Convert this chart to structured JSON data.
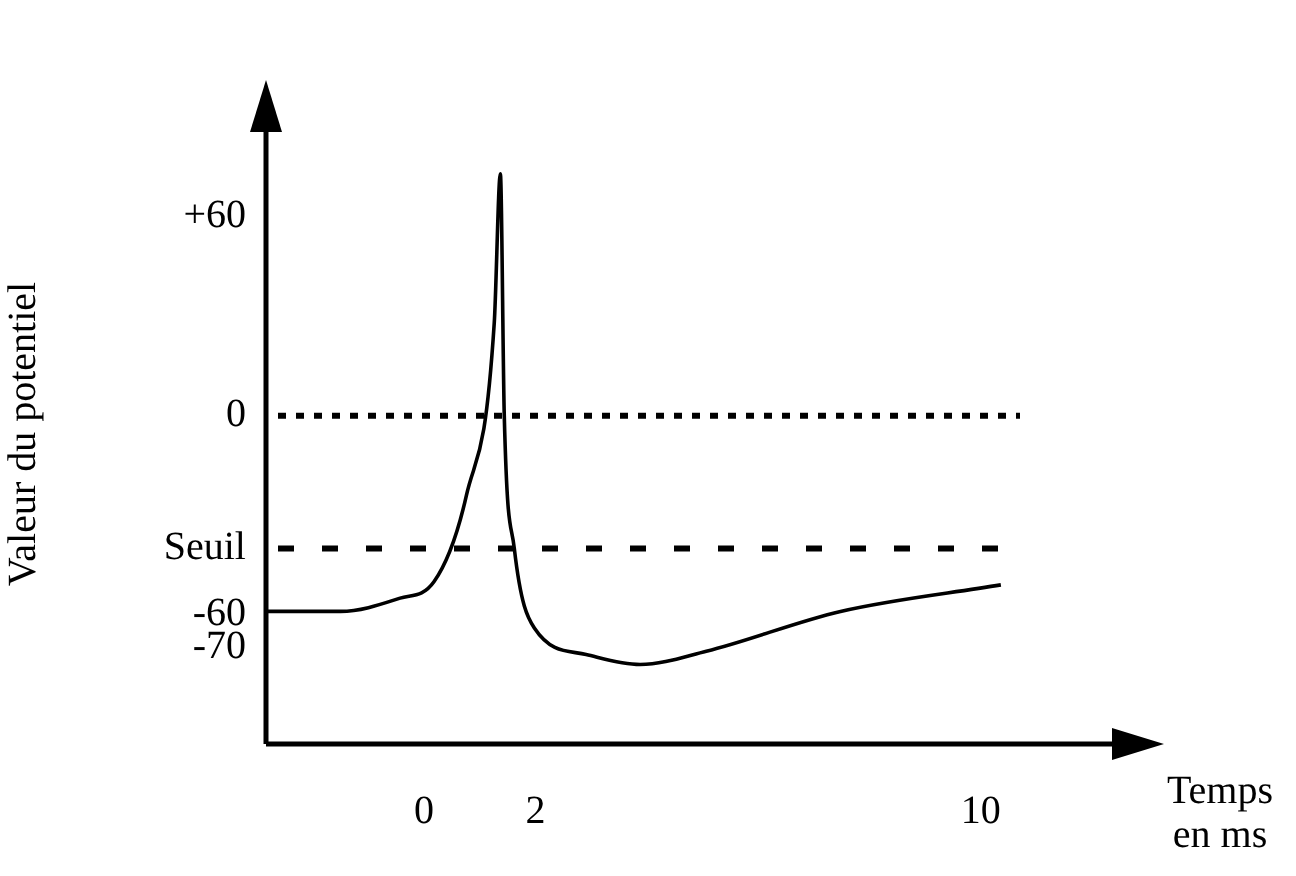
{
  "chart_data": {
    "type": "line",
    "xlabel": "Temps en ms",
    "ylabel": "Valeur du potentiel",
    "x": [
      -2.84,
      -1.5,
      -0.43,
      0.18,
      0.76,
      1.26,
      1.37,
      1.44,
      1.62,
      1.98,
      2.91,
      3.88,
      5.07,
      7.48,
      10.36
    ],
    "series": [
      {
        "color": "#000000",
        "values": [
          -59,
          -59,
          -55,
          -50,
          -24,
          28,
          73,
          0,
          -40,
          -64,
          -72,
          -75,
          -71,
          -59,
          -51
        ]
      }
    ],
    "xlim": [
      -2.84,
      12.5
    ],
    "xticks": [
      0,
      2,
      10
    ],
    "ylim": [
      -99,
      88
    ],
    "yticks": [
      {
        "value": 60,
        "label": "+60"
      },
      0,
      {
        "value": -40,
        "label": "Seuil"
      },
      -60,
      -70
    ],
    "ref_lines": [
      {
        "axis": "y",
        "value": 0,
        "line_style": "dotted"
      },
      {
        "axis": "y",
        "value": -40,
        "line_style": "dashed"
      }
    ],
    "grid": false,
    "legend": false,
    "marker": "none",
    "line_style": "solid"
  }
}
